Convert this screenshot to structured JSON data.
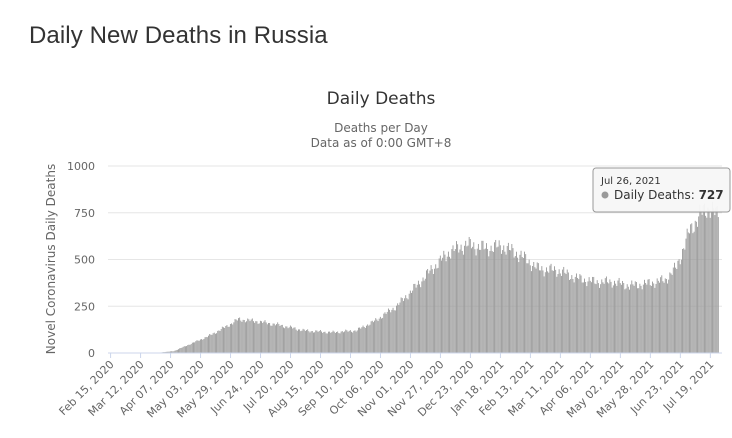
{
  "page": {
    "heading": "Daily New Deaths in Russia"
  },
  "chart_data": {
    "type": "bar",
    "title": "Daily Deaths",
    "subtitle_lines": [
      "Deaths per Day",
      "Data as of 0:00 GMT+8"
    ],
    "ylabel": "Novel Coronavirus Daily Deaths",
    "xlabel": "",
    "ylim": [
      0,
      1000
    ],
    "y_ticks": [
      0,
      250,
      500,
      750,
      1000
    ],
    "x_tick_labels": [
      "Feb 15, 2020",
      "Mar 12, 2020",
      "Apr 07, 2020",
      "May 03, 2020",
      "May 29, 2020",
      "Jun 24, 2020",
      "Jul 20, 2020",
      "Aug 15, 2020",
      "Sep 10, 2020",
      "Oct 06, 2020",
      "Nov 01, 2020",
      "Nov 27, 2020",
      "Dec 23, 2020",
      "Jan 18, 2021",
      "Feb 13, 2021",
      "Mar 11, 2021",
      "Apr 06, 2021",
      "May 02, 2021",
      "May 28, 2021",
      "Jun 23, 2021",
      "Jul 19, 2021"
    ],
    "grid": true,
    "legend": "none",
    "bar_color": "#999999",
    "x_start": "Feb 15, 2020",
    "daily_trend": [
      {
        "date": "Feb 15, 2020",
        "deaths": 0
      },
      {
        "date": "Mar 25, 2020",
        "deaths": 0
      },
      {
        "date": "Apr 10, 2020",
        "deaths": 10
      },
      {
        "date": "Apr 25, 2020",
        "deaths": 50
      },
      {
        "date": "May 10, 2020",
        "deaths": 90
      },
      {
        "date": "May 25, 2020",
        "deaths": 140
      },
      {
        "date": "Jun 05, 2020",
        "deaths": 180
      },
      {
        "date": "Jun 20, 2020",
        "deaths": 170
      },
      {
        "date": "Jul 10, 2020",
        "deaths": 150
      },
      {
        "date": "Aug 01, 2020",
        "deaths": 120
      },
      {
        "date": "Aug 25, 2020",
        "deaths": 110
      },
      {
        "date": "Sep 15, 2020",
        "deaths": 120
      },
      {
        "date": "Oct 01, 2020",
        "deaths": 170
      },
      {
        "date": "Oct 20, 2020",
        "deaths": 250
      },
      {
        "date": "Nov 05, 2020",
        "deaths": 350
      },
      {
        "date": "Nov 20, 2020",
        "deaths": 450
      },
      {
        "date": "Dec 05, 2020",
        "deaths": 540
      },
      {
        "date": "Dec 20, 2020",
        "deaths": 580
      },
      {
        "date": "Jan 05, 2021",
        "deaths": 560
      },
      {
        "date": "Jan 20, 2021",
        "deaths": 570
      },
      {
        "date": "Feb 05, 2021",
        "deaths": 520
      },
      {
        "date": "Feb 20, 2021",
        "deaths": 450
      },
      {
        "date": "Mar 10, 2021",
        "deaths": 440
      },
      {
        "date": "Mar 25, 2021",
        "deaths": 400
      },
      {
        "date": "Apr 10, 2021",
        "deaths": 380
      },
      {
        "date": "Apr 25, 2021",
        "deaths": 380
      },
      {
        "date": "May 10, 2021",
        "deaths": 360
      },
      {
        "date": "May 25, 2021",
        "deaths": 370
      },
      {
        "date": "Jun 10, 2021",
        "deaths": 390
      },
      {
        "date": "Jun 20, 2021",
        "deaths": 460
      },
      {
        "date": "Jul 01, 2021",
        "deaths": 650
      },
      {
        "date": "Jul 10, 2021",
        "deaths": 740
      },
      {
        "date": "Jul 19, 2021",
        "deaths": 780
      },
      {
        "date": "Jul 26, 2021",
        "deaths": 727
      }
    ],
    "tooltip": {
      "date": "Jul 26, 2021",
      "series_name": "Daily Deaths",
      "value": "727"
    }
  }
}
